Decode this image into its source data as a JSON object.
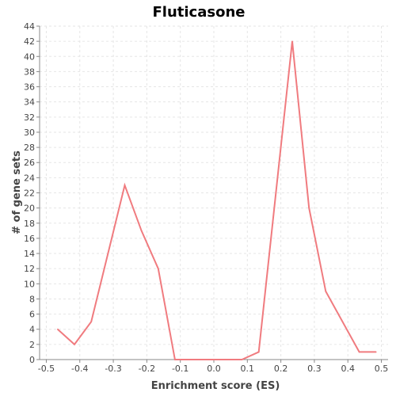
{
  "chart_data": {
    "type": "line",
    "title": "Fluticasone",
    "xlabel": "Enrichment score (ES)",
    "ylabel": "# of gene sets",
    "xlim": [
      -0.52,
      0.52
    ],
    "ylim": [
      0,
      44
    ],
    "xticks": [
      -0.5,
      -0.4,
      -0.3,
      -0.2,
      -0.1,
      0.0,
      0.1,
      0.2,
      0.3,
      0.4,
      0.5
    ],
    "xtick_labels": [
      "-0.5",
      "-0.4",
      "-0.3",
      "-0.2",
      "-0.1",
      "0.0",
      "0.1",
      "0.2",
      "0.3",
      "0.4",
      "0.5"
    ],
    "yticks": [
      0,
      2,
      4,
      6,
      8,
      10,
      12,
      14,
      16,
      18,
      20,
      22,
      24,
      26,
      28,
      30,
      32,
      34,
      36,
      38,
      40,
      42,
      44
    ],
    "grid": true,
    "series": [
      {
        "color": "#f07b7f",
        "x": [
          -0.466,
          -0.416,
          -0.366,
          -0.266,
          -0.216,
          -0.166,
          -0.116,
          -0.016,
          0.034,
          0.084,
          0.134,
          0.234,
          0.284,
          0.334,
          0.434,
          0.484
        ],
        "y": [
          4,
          2,
          5,
          23,
          17,
          12,
          0,
          0,
          0,
          0,
          1,
          42,
          20,
          9,
          1,
          1
        ]
      }
    ]
  }
}
